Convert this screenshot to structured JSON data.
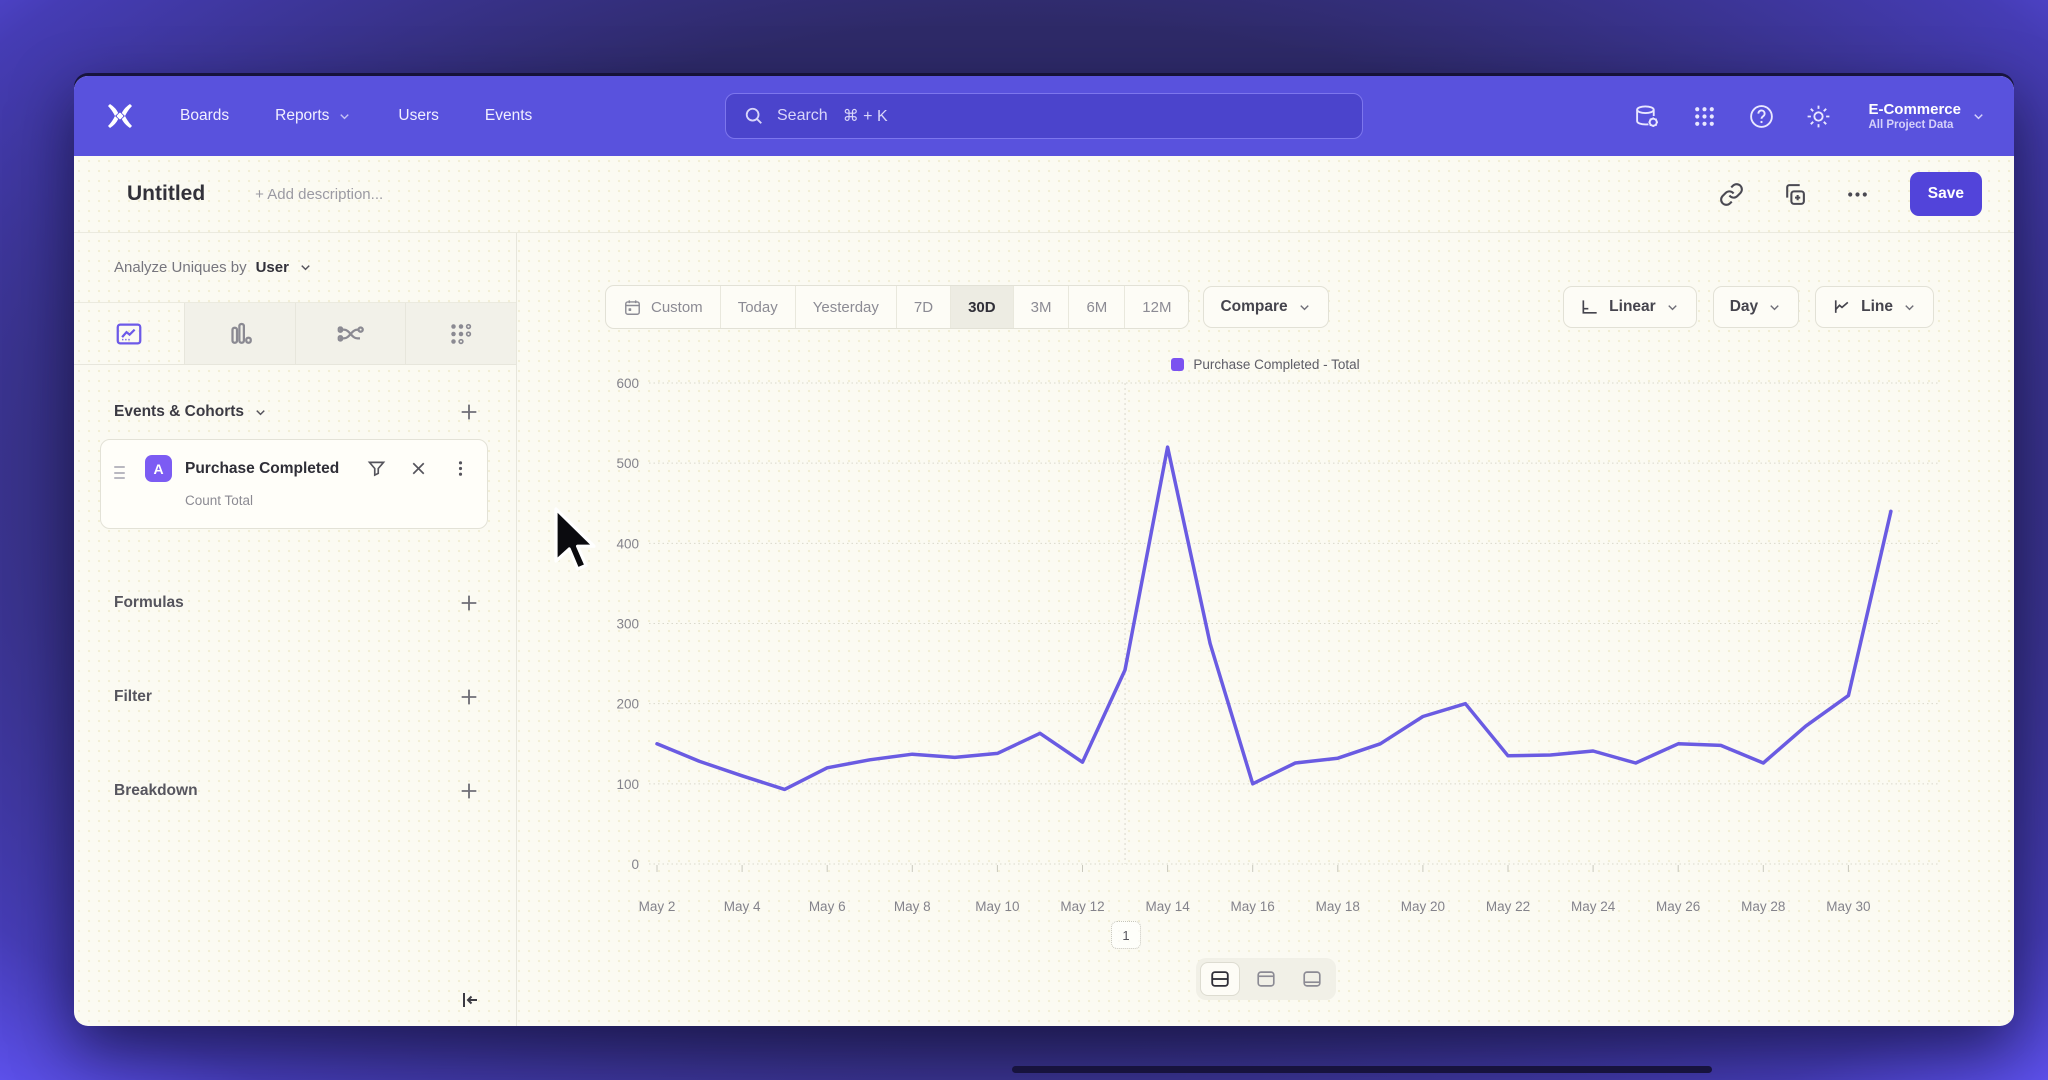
{
  "nav": {
    "menu": [
      {
        "label": "Boards",
        "has_dropdown": false
      },
      {
        "label": "Reports",
        "has_dropdown": true
      },
      {
        "label": "Users",
        "has_dropdown": false
      },
      {
        "label": "Events",
        "has_dropdown": false
      }
    ],
    "search": {
      "label": "Search",
      "shortcut": "⌘ + K"
    },
    "icons": [
      "data-management-icon",
      "apps-grid-icon",
      "help-icon",
      "settings-gear-icon"
    ],
    "project": {
      "name": "E-Commerce",
      "scope": "All Project Data"
    }
  },
  "title_bar": {
    "title": "Untitled",
    "description_placeholder": "+ Add description...",
    "save_label": "Save"
  },
  "sidebar": {
    "analyze_label": "Analyze Uniques by",
    "analyze_value": "User",
    "tabs": [
      "insights-line-tab",
      "bar-chart-tab",
      "flow-tab",
      "retention-grid-tab"
    ],
    "active_tab_index": 0,
    "events_header": "Events & Cohorts",
    "event_card": {
      "badge": "A",
      "title": "Purchase Completed",
      "subtitle": "Count Total"
    },
    "sections": {
      "formulas": "Formulas",
      "filter": "Filter",
      "breakdown": "Breakdown"
    }
  },
  "toolbar": {
    "ranges": [
      "Custom",
      "Today",
      "Yesterday",
      "7D",
      "30D",
      "3M",
      "6M",
      "12M"
    ],
    "active_range": "30D",
    "compare_label": "Compare",
    "scale_label": "Linear",
    "interval_label": "Day",
    "chart_type_label": "Line"
  },
  "chart_data": {
    "type": "line",
    "title": "",
    "legend": [
      "Purchase Completed - Total"
    ],
    "x": [
      "May 2",
      "May 3",
      "May 4",
      "May 5",
      "May 6",
      "May 7",
      "May 8",
      "May 9",
      "May 10",
      "May 11",
      "May 12",
      "May 13",
      "May 14",
      "May 15",
      "May 16",
      "May 17",
      "May 18",
      "May 19",
      "May 20",
      "May 21",
      "May 22",
      "May 23",
      "May 24",
      "May 25",
      "May 26",
      "May 27",
      "May 28",
      "May 29",
      "May 30",
      "May 31"
    ],
    "series": [
      {
        "name": "Purchase Completed - Total",
        "values": [
          150,
          128,
          110,
          93,
          120,
          130,
          137,
          133,
          138,
          163,
          127,
          242,
          520,
          275,
          100,
          126,
          132,
          150,
          184,
          200,
          135,
          136,
          141,
          126,
          150,
          148,
          126,
          172,
          210,
          440
        ]
      }
    ],
    "ylim": [
      0,
      600
    ],
    "yticks": [
      0,
      100,
      200,
      300,
      400,
      500,
      600
    ],
    "xtick_labels": [
      "May 2",
      "May 4",
      "May 6",
      "May 8",
      "May 10",
      "May 12",
      "May 14",
      "May 16",
      "May 18",
      "May 20",
      "May 22",
      "May 24",
      "May 26",
      "May 28",
      "May 30"
    ],
    "grid": "horizontal-dotted",
    "legend_position": "top-center",
    "line_color": "#6a5be2",
    "annotation": {
      "label": "1",
      "x": "May 13"
    }
  },
  "footer": {
    "layout_toggles": [
      "split-view",
      "chart-only-view",
      "table-view"
    ],
    "active_toggle_index": 0
  }
}
